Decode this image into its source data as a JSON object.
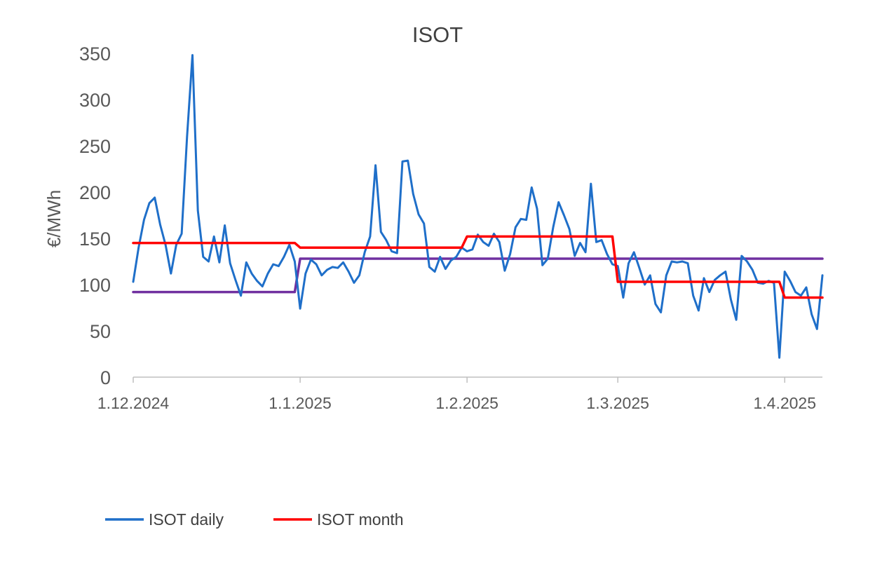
{
  "chart_data": {
    "type": "line",
    "title": "ISOT",
    "xlabel": "",
    "ylabel": "€/MWh",
    "x_range": [
      "2024-12-01",
      "2025-04-08"
    ],
    "ylim": [
      0,
      350
    ],
    "yticks": [
      0,
      50,
      100,
      150,
      200,
      250,
      300,
      350
    ],
    "xticks": [
      {
        "date": "2024-12-01",
        "label": "1.12.2024"
      },
      {
        "date": "2025-01-01",
        "label": "1.1.2025"
      },
      {
        "date": "2025-02-01",
        "label": "1.2.2025"
      },
      {
        "date": "2025-03-01",
        "label": "1.3.2025"
      },
      {
        "date": "2025-04-01",
        "label": "1.4.2025"
      }
    ],
    "grid": false,
    "legend": "bottom-left",
    "series": [
      {
        "name": "ISOT daily",
        "color": "#1f6fc9",
        "points": [
          [
            "2024-12-01",
            103
          ],
          [
            "2024-12-02",
            140
          ],
          [
            "2024-12-03",
            170
          ],
          [
            "2024-12-04",
            188
          ],
          [
            "2024-12-05",
            194
          ],
          [
            "2024-12-06",
            165
          ],
          [
            "2024-12-07",
            143
          ],
          [
            "2024-12-08",
            112
          ],
          [
            "2024-12-09",
            143
          ],
          [
            "2024-12-10",
            155
          ],
          [
            "2024-12-11",
            260
          ],
          [
            "2024-12-12",
            348
          ],
          [
            "2024-12-13",
            180
          ],
          [
            "2024-12-14",
            130
          ],
          [
            "2024-12-15",
            125
          ],
          [
            "2024-12-16",
            152
          ],
          [
            "2024-12-17",
            124
          ],
          [
            "2024-12-18",
            164
          ],
          [
            "2024-12-19",
            123
          ],
          [
            "2024-12-20",
            105
          ],
          [
            "2024-12-21",
            88
          ],
          [
            "2024-12-22",
            124
          ],
          [
            "2024-12-23",
            112
          ],
          [
            "2024-12-24",
            104
          ],
          [
            "2024-12-25",
            98
          ],
          [
            "2024-12-26",
            112
          ],
          [
            "2024-12-27",
            122
          ],
          [
            "2024-12-28",
            120
          ],
          [
            "2024-12-29",
            130
          ],
          [
            "2024-12-30",
            143
          ],
          [
            "2024-12-31",
            125
          ],
          [
            "2025-01-01",
            74
          ],
          [
            "2025-01-02",
            112
          ],
          [
            "2025-01-03",
            127
          ],
          [
            "2025-01-04",
            122
          ],
          [
            "2025-01-05",
            110
          ],
          [
            "2025-01-06",
            116
          ],
          [
            "2025-01-07",
            119
          ],
          [
            "2025-01-08",
            118
          ],
          [
            "2025-01-09",
            124
          ],
          [
            "2025-01-10",
            114
          ],
          [
            "2025-01-11",
            102
          ],
          [
            "2025-01-12",
            110
          ],
          [
            "2025-01-13",
            135
          ],
          [
            "2025-01-14",
            152
          ],
          [
            "2025-01-15",
            229
          ],
          [
            "2025-01-16",
            157
          ],
          [
            "2025-01-17",
            148
          ],
          [
            "2025-01-18",
            136
          ],
          [
            "2025-01-19",
            134
          ],
          [
            "2025-01-20",
            233
          ],
          [
            "2025-01-21",
            234
          ],
          [
            "2025-01-22",
            198
          ],
          [
            "2025-01-23",
            176
          ],
          [
            "2025-01-24",
            166
          ],
          [
            "2025-01-25",
            119
          ],
          [
            "2025-01-26",
            114
          ],
          [
            "2025-01-27",
            130
          ],
          [
            "2025-01-28",
            117
          ],
          [
            "2025-01-29",
            126
          ],
          [
            "2025-01-30",
            130
          ],
          [
            "2025-01-31",
            140
          ],
          [
            "2025-02-01",
            136
          ],
          [
            "2025-02-02",
            138
          ],
          [
            "2025-02-03",
            154
          ],
          [
            "2025-02-04",
            146
          ],
          [
            "2025-02-05",
            142
          ],
          [
            "2025-02-06",
            155
          ],
          [
            "2025-02-07",
            146
          ],
          [
            "2025-02-08",
            115
          ],
          [
            "2025-02-09",
            133
          ],
          [
            "2025-02-10",
            162
          ],
          [
            "2025-02-11",
            171
          ],
          [
            "2025-02-12",
            170
          ],
          [
            "2025-02-13",
            205
          ],
          [
            "2025-02-14",
            182
          ],
          [
            "2025-02-15",
            121
          ],
          [
            "2025-02-16",
            128
          ],
          [
            "2025-02-17",
            162
          ],
          [
            "2025-02-18",
            189
          ],
          [
            "2025-02-19",
            175
          ],
          [
            "2025-02-20",
            160
          ],
          [
            "2025-02-21",
            131
          ],
          [
            "2025-02-22",
            145
          ],
          [
            "2025-02-23",
            135
          ],
          [
            "2025-02-24",
            209
          ],
          [
            "2025-02-25",
            146
          ],
          [
            "2025-02-26",
            148
          ],
          [
            "2025-02-27",
            133
          ],
          [
            "2025-02-28",
            122
          ],
          [
            "2025-03-01",
            120
          ],
          [
            "2025-03-02",
            86
          ],
          [
            "2025-03-03",
            123
          ],
          [
            "2025-03-04",
            135
          ],
          [
            "2025-03-05",
            118
          ],
          [
            "2025-03-06",
            100
          ],
          [
            "2025-03-07",
            110
          ],
          [
            "2025-03-08",
            79
          ],
          [
            "2025-03-09",
            70
          ],
          [
            "2025-03-10",
            110
          ],
          [
            "2025-03-11",
            125
          ],
          [
            "2025-03-12",
            124
          ],
          [
            "2025-03-13",
            125
          ],
          [
            "2025-03-14",
            123
          ],
          [
            "2025-03-15",
            88
          ],
          [
            "2025-03-16",
            72
          ],
          [
            "2025-03-17",
            107
          ],
          [
            "2025-03-18",
            92
          ],
          [
            "2025-03-19",
            105
          ],
          [
            "2025-03-20",
            110
          ],
          [
            "2025-03-21",
            114
          ],
          [
            "2025-03-22",
            84
          ],
          [
            "2025-03-23",
            62
          ],
          [
            "2025-03-24",
            131
          ],
          [
            "2025-03-25",
            125
          ],
          [
            "2025-03-26",
            116
          ],
          [
            "2025-03-27",
            102
          ],
          [
            "2025-03-28",
            101
          ],
          [
            "2025-03-29",
            104
          ],
          [
            "2025-03-30",
            102
          ],
          [
            "2025-03-31",
            21
          ],
          [
            "2025-04-01",
            114
          ],
          [
            "2025-04-02",
            104
          ],
          [
            "2025-04-03",
            92
          ],
          [
            "2025-04-04",
            88
          ],
          [
            "2025-04-05",
            97
          ],
          [
            "2025-04-06",
            68
          ],
          [
            "2025-04-07",
            52
          ],
          [
            "2025-04-08",
            110
          ]
        ]
      },
      {
        "name": "ISOT month",
        "color": "#ff0000",
        "points": [
          [
            "2024-12-01",
            145
          ],
          [
            "2024-12-31",
            145
          ],
          [
            "2025-01-01",
            140
          ],
          [
            "2025-01-31",
            140
          ],
          [
            "2025-02-01",
            152
          ],
          [
            "2025-02-28",
            152
          ],
          [
            "2025-03-01",
            103
          ],
          [
            "2025-03-31",
            103
          ],
          [
            "2025-04-01",
            86
          ],
          [
            "2025-04-08",
            86
          ]
        ]
      },
      {
        "color": "#7030a0",
        "points": [
          [
            "2024-12-01",
            92
          ],
          [
            "2024-12-31",
            92
          ],
          [
            "2025-01-01",
            128
          ],
          [
            "2025-04-08",
            128
          ]
        ]
      }
    ]
  }
}
